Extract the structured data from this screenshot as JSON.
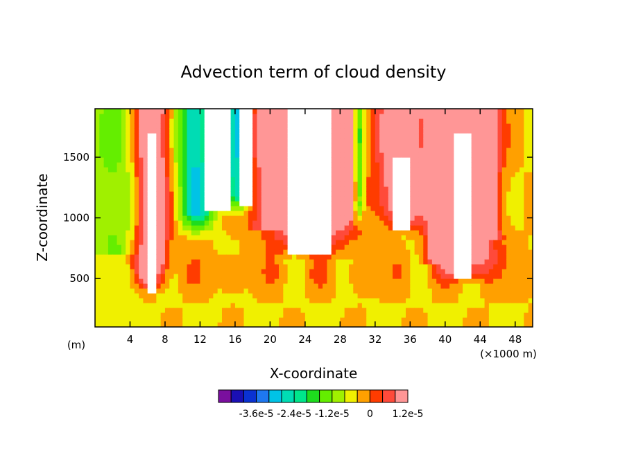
{
  "chart_data": {
    "type": "heatmap",
    "title": "Advection term of cloud density",
    "xlabel": "X-coordinate",
    "ylabel": "Z-coordinate",
    "x_unit_note": "(×1000 m)",
    "y_unit_note": "(m)",
    "xlim": [
      0,
      50
    ],
    "ylim": [
      100,
      1900
    ],
    "x_ticks": [
      4,
      8,
      12,
      16,
      20,
      24,
      28,
      32,
      36,
      40,
      44,
      48
    ],
    "x_tick_labels": [
      "4",
      "8",
      "12",
      "16",
      "20",
      "24",
      "28",
      "32",
      "36",
      "40",
      "44",
      "48"
    ],
    "y_ticks": [
      500,
      1000,
      1500
    ],
    "y_tick_labels": [
      "500",
      "1000",
      "1500"
    ],
    "colorbar": {
      "colors": [
        "#7a0f9e",
        "#1a0fb4",
        "#0a32d2",
        "#1e78f0",
        "#00c3e6",
        "#00dcb4",
        "#00e68c",
        "#1edc1e",
        "#64ee00",
        "#a0f000",
        "#f0f000",
        "#ffa000",
        "#ff3c00",
        "#ff4a3a",
        "#ff9696"
      ],
      "labels": [
        "-3.6e-5",
        "-2.4e-5",
        "-1.2e-5",
        "0",
        "1.2e-5"
      ],
      "label_bounds": [
        3,
        6,
        9,
        12,
        15
      ]
    },
    "features": [
      {
        "kind": "cloud-core",
        "x": 14,
        "z_bottom": 1050,
        "z_top": 1900,
        "width": 3
      },
      {
        "kind": "cloud-core",
        "x": 17.2,
        "z_bottom": 1100,
        "z_top": 1900,
        "width": 1.2
      },
      {
        "kind": "cloud-core",
        "x": 24.5,
        "z_bottom": 700,
        "z_top": 1900,
        "width": 5
      },
      {
        "kind": "cloud-core",
        "x": 6.5,
        "z_bottom": 380,
        "z_top": 1700,
        "width": 1.5
      },
      {
        "kind": "cloud-core",
        "x": 35,
        "z_bottom": 900,
        "z_top": 1500,
        "width": 2
      },
      {
        "kind": "cloud-core",
        "x": 42,
        "z_bottom": 500,
        "z_top": 1700,
        "width": 2
      }
    ]
  }
}
